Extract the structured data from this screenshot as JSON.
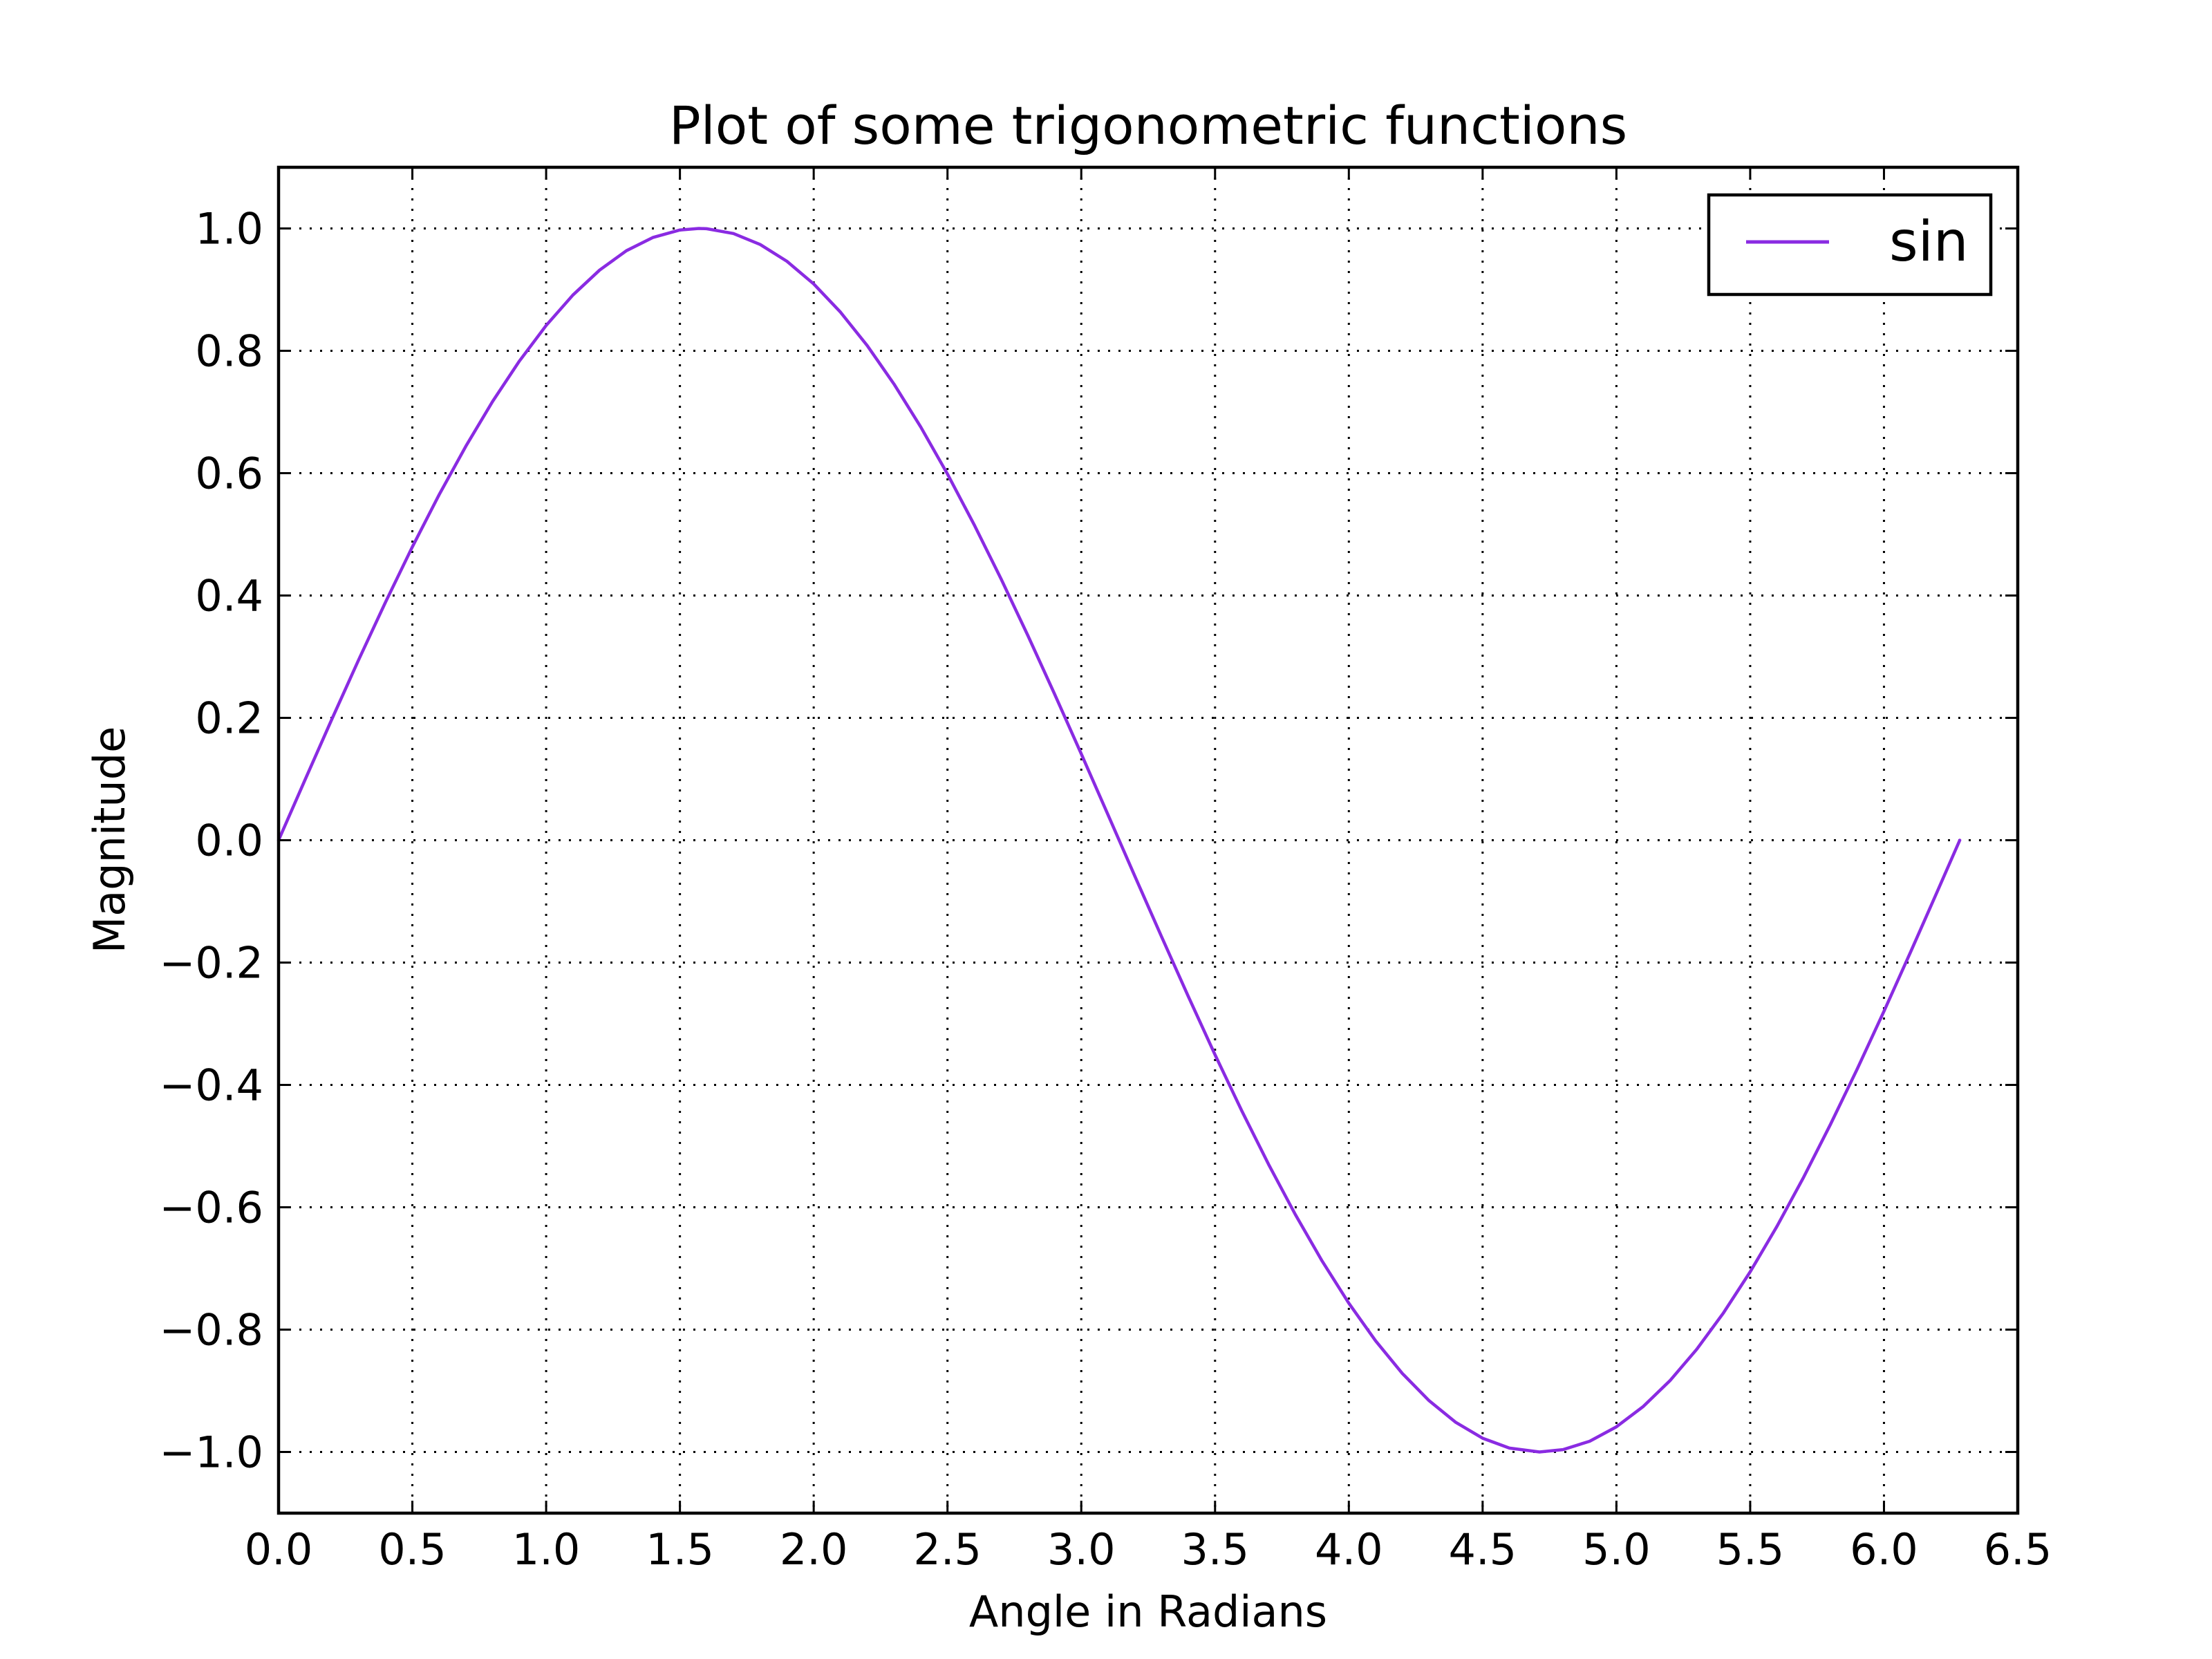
{
  "chart_data": {
    "type": "line",
    "title": "Plot of some trigonometric functions",
    "xlabel": "Angle in Radians",
    "ylabel": "Magnitude",
    "xlim": [
      0.0,
      6.5
    ],
    "ylim": [
      -1.1,
      1.1
    ],
    "xticks": [
      "0.0",
      "0.5",
      "1.0",
      "1.5",
      "2.0",
      "2.5",
      "3.0",
      "3.5",
      "4.0",
      "4.5",
      "5.0",
      "5.5",
      "6.0",
      "6.5"
    ],
    "yticks": [
      "1.0",
      "0.8",
      "0.6",
      "0.4",
      "0.2",
      "0.0",
      "−0.2",
      "−0.4",
      "−0.6",
      "−0.8",
      "−1.0"
    ],
    "grid": true,
    "legend_position": "top-right",
    "series": [
      {
        "name": "sin",
        "color": "#8a2be2",
        "x": [
          0.0,
          0.1,
          0.2,
          0.3,
          0.4,
          0.5,
          0.6,
          0.7,
          0.8,
          0.9,
          1.0,
          1.1,
          1.2,
          1.3,
          1.4,
          1.5,
          1.5708,
          1.6,
          1.7,
          1.8,
          1.9,
          2.0,
          2.1,
          2.2,
          2.3,
          2.4,
          2.5,
          2.6,
          2.7,
          2.8,
          2.9,
          3.0,
          3.1,
          3.1416,
          3.2,
          3.3,
          3.4,
          3.5,
          3.6,
          3.7,
          3.8,
          3.9,
          4.0,
          4.1,
          4.2,
          4.3,
          4.4,
          4.5,
          4.6,
          4.7124,
          4.8,
          4.9,
          5.0,
          5.1,
          5.2,
          5.3,
          5.4,
          5.5,
          5.6,
          5.7,
          5.8,
          5.9,
          6.0,
          6.1,
          6.2,
          6.2832
        ],
        "y": [
          0.0,
          0.0998,
          0.1987,
          0.2955,
          0.3894,
          0.4794,
          0.5646,
          0.6442,
          0.7174,
          0.7833,
          0.8415,
          0.8912,
          0.932,
          0.9636,
          0.9854,
          0.9975,
          1.0,
          0.9996,
          0.9917,
          0.9738,
          0.9463,
          0.9093,
          0.8632,
          0.8085,
          0.7457,
          0.6755,
          0.5985,
          0.5155,
          0.4274,
          0.335,
          0.2392,
          0.1411,
          0.0416,
          0.0,
          -0.0584,
          -0.1577,
          -0.2555,
          -0.3508,
          -0.4425,
          -0.5298,
          -0.6119,
          -0.6878,
          -0.7568,
          -0.8183,
          -0.8716,
          -0.9162,
          -0.9516,
          -0.9775,
          -0.9937,
          -1.0,
          -0.9962,
          -0.9825,
          -0.9589,
          -0.9258,
          -0.8835,
          -0.8323,
          -0.7728,
          -0.7055,
          -0.6313,
          -0.5507,
          -0.4646,
          -0.3739,
          -0.2794,
          -0.1822,
          -0.0831,
          0.0
        ]
      }
    ]
  }
}
